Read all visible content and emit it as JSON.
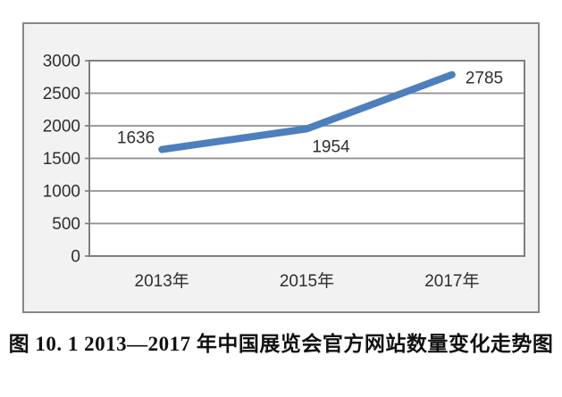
{
  "figure": {
    "caption": "图 10. 1  2013—2017 年中国展览会官方网站数量变化走势图"
  },
  "chart_data": {
    "type": "line",
    "categories": [
      "2013年",
      "2015年",
      "2017年"
    ],
    "values": [
      1636,
      1954,
      2785
    ],
    "data_labels": [
      "1636",
      "1954",
      "2785"
    ],
    "data_label_side": [
      "left",
      "below-right",
      "right"
    ],
    "title": "",
    "xlabel": "",
    "ylabel": "",
    "ylim": [
      0,
      3000
    ],
    "yticks": [
      0,
      500,
      1000,
      1500,
      2000,
      2500,
      3000
    ],
    "grid": true,
    "legend": false,
    "colors": {
      "line": "#4d7fbe",
      "chart_background": "#f2f2f2",
      "plot_background": "#ffffff",
      "gridline": "#8e8e8e",
      "plot_border": "#7f7f7f",
      "frame_border": "#878787",
      "text": "#2e2e2e",
      "caption_text": "#111111"
    }
  }
}
